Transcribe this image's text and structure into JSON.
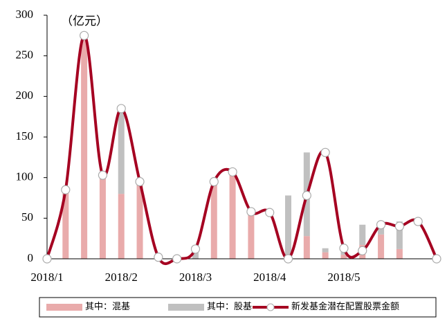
{
  "chart_data": {
    "type": "bar_line",
    "unit_label": "（亿元）",
    "categories": [
      "2018/1",
      null,
      null,
      null,
      "2018/2",
      null,
      null,
      null,
      "2018/3",
      null,
      null,
      null,
      "2018/4",
      null,
      null,
      null,
      "2018/5",
      null,
      null,
      null,
      null,
      null
    ],
    "series": [
      {
        "name": "其中：混基",
        "type": "bar",
        "color": "#e9abab",
        "values": [
          null,
          85,
          275,
          103,
          80,
          95,
          null,
          null,
          null,
          95,
          105,
          55,
          null,
          5,
          28,
          8,
          5,
          17,
          30,
          12,
          null,
          null
        ]
      },
      {
        "name": "其中：股基",
        "type": "bar",
        "color": "#c0c0c0",
        "values": [
          null,
          null,
          null,
          null,
          105,
          null,
          null,
          null,
          12,
          null,
          null,
          null,
          null,
          73,
          103,
          5,
          5,
          25,
          10,
          34,
          null,
          null
        ]
      },
      {
        "name": "新发基金潜在配置股票金额",
        "type": "line",
        "color": "#a50021",
        "values": [
          0,
          85,
          275,
          103,
          185,
          95,
          2,
          0,
          12,
          95,
          107,
          58,
          57,
          0,
          78,
          131,
          13,
          10,
          42,
          40,
          46,
          0
        ]
      }
    ],
    "ylim": [
      0,
      300
    ],
    "yticks": [
      0,
      50,
      100,
      150,
      200,
      250,
      300
    ]
  }
}
